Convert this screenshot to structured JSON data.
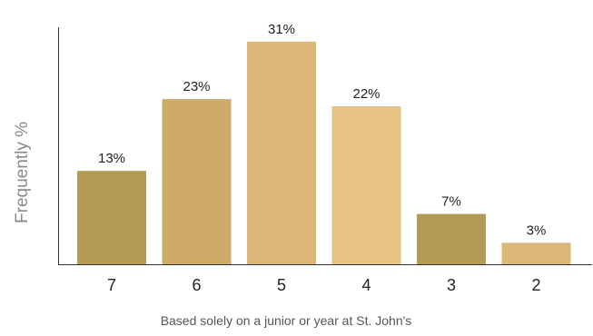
{
  "chart_data": {
    "type": "bar",
    "categories": [
      "7",
      "6",
      "5",
      "4",
      "3",
      "2"
    ],
    "values": [
      13,
      23,
      31,
      22,
      7,
      3
    ],
    "value_labels": [
      "13%",
      "23%",
      "31%",
      "22%",
      "7%",
      "3%"
    ],
    "colors": [
      "#b59a55",
      "#cfab6a",
      "#dbb87a",
      "#e6c383",
      "#b59a55",
      "#dbb87a"
    ],
    "title": "",
    "xlabel": "Based solely on a junior or year at St. John's",
    "ylabel": "Frequently %",
    "ylim": [
      0,
      33
    ],
    "grid": false,
    "legend": "none"
  }
}
